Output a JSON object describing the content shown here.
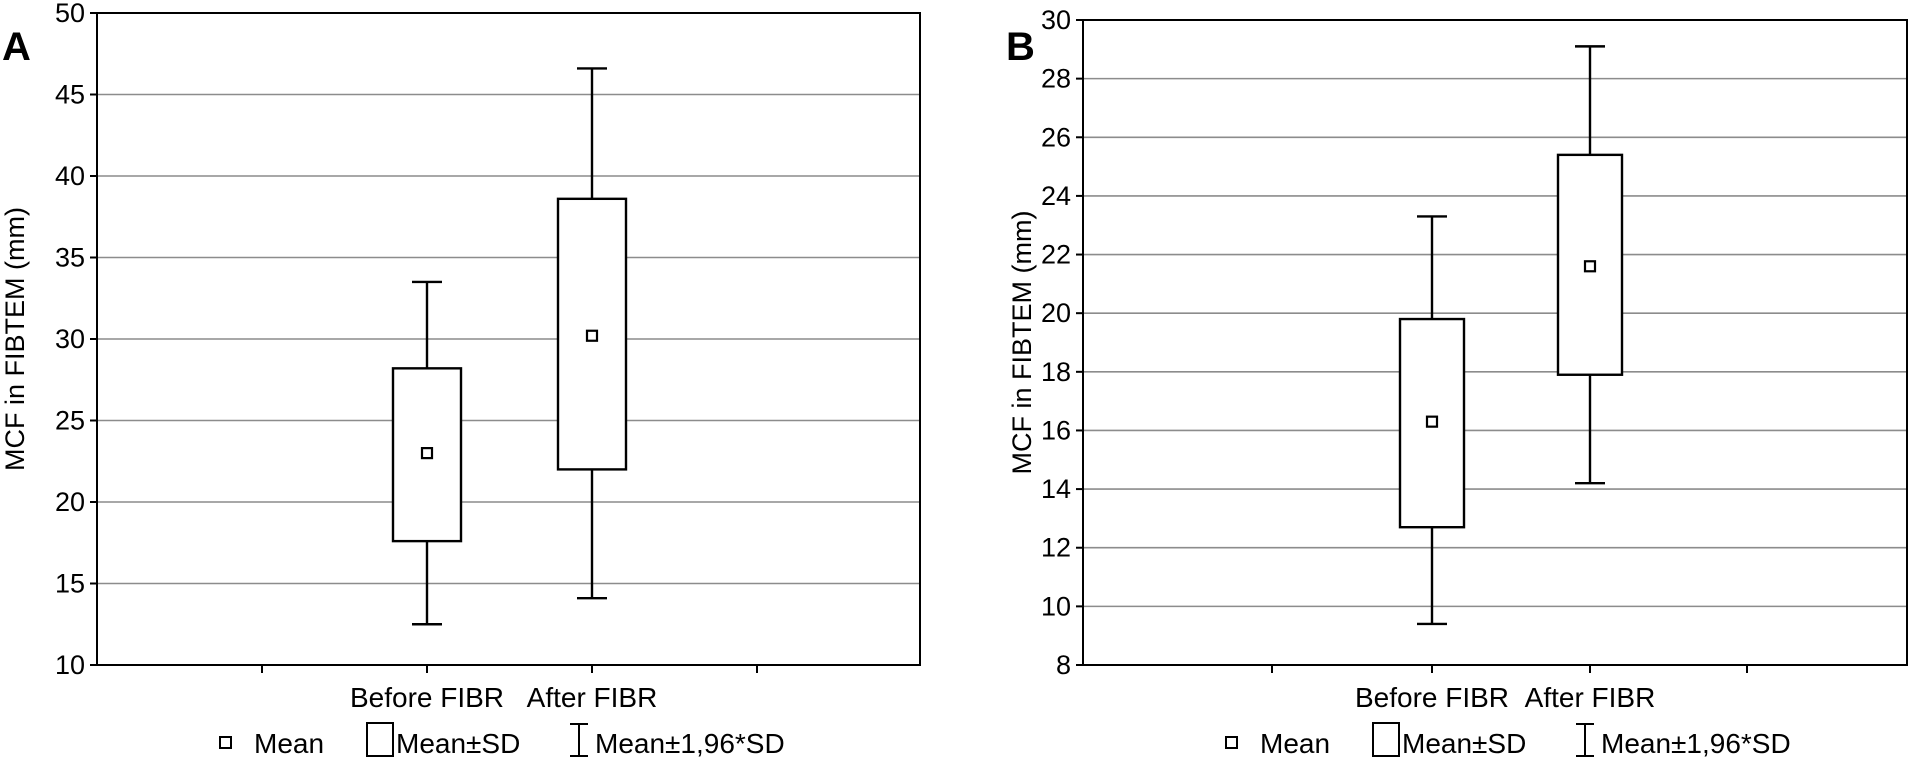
{
  "chart_data": [
    {
      "type": "box",
      "panel_label": "A",
      "ylabel": "MCF in FIBTEM (mm)",
      "xlabel": "",
      "ylim": [
        10,
        50
      ],
      "yticks": [
        10,
        15,
        20,
        25,
        30,
        35,
        40,
        45,
        50
      ],
      "ytick_labels": [
        "10",
        "15",
        "20",
        "25",
        "30",
        "35",
        "40",
        "45",
        "50"
      ],
      "grid": true,
      "categories": [
        "Before FIBR",
        "After FIBR"
      ],
      "series": [
        {
          "mean": [
            23.0,
            30.2
          ],
          "mean_minus_sd": [
            17.6,
            22.0
          ],
          "mean_plus_sd": [
            28.2,
            38.6
          ],
          "mean_minus_1_96sd": [
            12.5,
            14.1
          ],
          "mean_plus_1_96sd": [
            33.5,
            46.6
          ]
        }
      ]
    },
    {
      "type": "box",
      "panel_label": "B",
      "ylabel": "MCF in FIBTEM (mm)",
      "xlabel": "",
      "ylim": [
        8,
        30
      ],
      "yticks": [
        8,
        10,
        12,
        14,
        16,
        18,
        20,
        22,
        24,
        26,
        28,
        30
      ],
      "ytick_labels": [
        "8",
        "10",
        "12",
        "14",
        "16",
        "18",
        "20",
        "22",
        "24",
        "26",
        "28",
        "30"
      ],
      "grid": true,
      "categories": [
        "Before FIBR",
        "After FIBR"
      ],
      "series": [
        {
          "mean": [
            16.3,
            21.6
          ],
          "mean_minus_sd": [
            12.7,
            17.9
          ],
          "mean_plus_sd": [
            19.8,
            25.4
          ],
          "mean_minus_1_96sd": [
            9.4,
            14.2
          ],
          "mean_plus_1_96sd": [
            23.3,
            29.1
          ]
        }
      ]
    }
  ],
  "legend": {
    "mean_label": "Mean",
    "sd_label": "Mean±SD",
    "whisker_label": "Mean±1,96*SD",
    "placement": "bottom"
  }
}
